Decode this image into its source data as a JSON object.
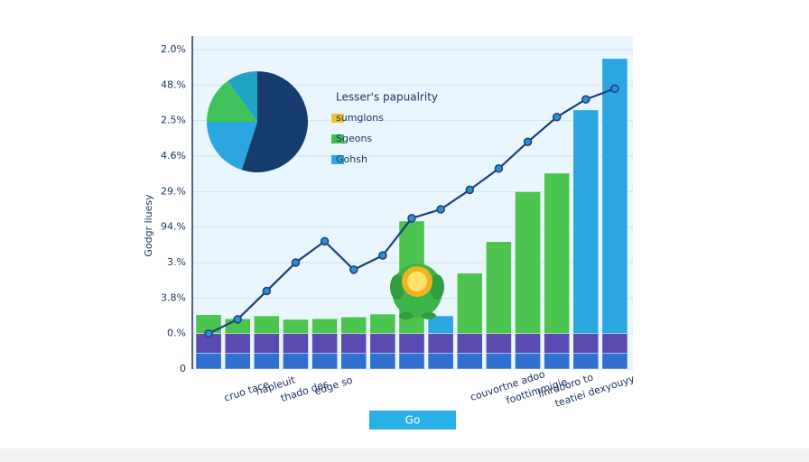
{
  "chart_data": [
    {
      "type": "bar",
      "ylabel": "Godgr liuesy",
      "categories": [
        null,
        "cruo tace",
        "hapleuit",
        "thado des",
        "edge so",
        null,
        null,
        null,
        null,
        null,
        "couvortne adoo",
        "foottimmigie",
        "linrdooro to",
        "teatiei dexyouyy",
        null
      ],
      "ylim": [
        0,
        9
      ],
      "yticks": [
        0,
        {
          "value": 1,
          "label": "0.%"
        },
        {
          "value": 2,
          "label": "3.8%"
        },
        {
          "value": 3,
          "label": "3.%"
        },
        {
          "value": 4,
          "label": "94.%"
        },
        {
          "value": 5,
          "label": "29.%"
        },
        {
          "value": 6,
          "label": "4.6%"
        },
        {
          "value": 7,
          "label": "2.5%"
        },
        {
          "value": 8,
          "label": "48.%"
        },
        {
          "value": 9,
          "label": "2.0%"
        }
      ],
      "grid": true,
      "series": [
        {
          "type": "bar",
          "color": "#2f6fd0",
          "values": [
            0.45,
            0.45,
            0.45,
            0.45,
            0.45,
            0.45,
            0.45,
            0.45,
            0.45,
            0.45,
            0.45,
            0.45,
            0.45,
            0.45,
            0.45
          ]
        },
        {
          "type": "bar",
          "color": "#5b4bb0",
          "values": [
            0.55,
            0.55,
            0.55,
            0.55,
            0.55,
            0.55,
            0.55,
            0.55,
            0.55,
            0.55,
            0.55,
            0.55,
            0.55,
            0.55,
            0.55
          ]
        },
        {
          "type": "bar",
          "colors": [
            "#4cc44f",
            "#4cc44f",
            "#4cc44f",
            "#4cc44f",
            "#4cc44f",
            "#4cc44f",
            "#4cc44f",
            "#4cc44f",
            "#2aa7e0",
            "#4cc44f",
            "#4cc44f",
            "#4cc44f",
            "#4cc44f",
            "#2aa7e0",
            "#2aa7e0"
          ],
          "values": [
            0.53,
            0.42,
            0.5,
            0.4,
            0.42,
            0.47,
            0.55,
            3.17,
            0.5,
            1.7,
            2.59,
            4.0,
            4.52,
            6.3,
            7.75
          ]
        },
        {
          "type": "line",
          "color": "#1d3f7a",
          "values": [
            1.0,
            1.4,
            2.2,
            3.0,
            3.6,
            2.8,
            3.2,
            4.25,
            4.5,
            5.05,
            5.65,
            6.4,
            7.1,
            7.6,
            7.9
          ]
        }
      ]
    },
    {
      "type": "pie",
      "title": "Lesser's papualrity",
      "values": [
        55,
        20,
        15,
        10
      ],
      "colors": [
        "#173d6e",
        "#2aa7e0",
        "#3fc25a",
        "#1fa4c6"
      ],
      "legend": [
        {
          "name": "sumglons",
          "color": "#f2c12e"
        },
        {
          "name": "Sgeons",
          "color": "#3fbf4f"
        },
        {
          "name": "Gohsh",
          "color": "#29a8e0"
        }
      ]
    }
  ],
  "button": "Go"
}
